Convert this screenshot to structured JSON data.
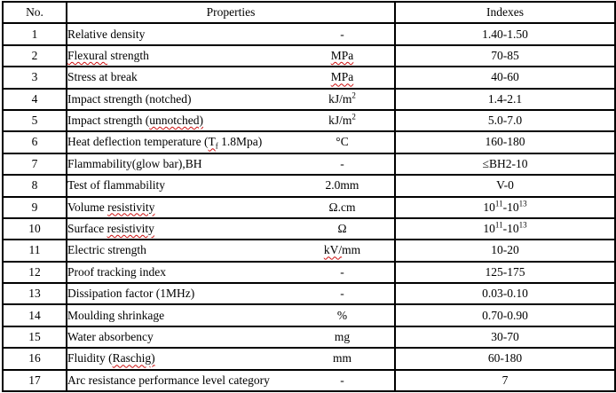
{
  "table": {
    "header": {
      "no": "No.",
      "properties": "Properties",
      "indexes": "Indexes"
    },
    "rows": [
      {
        "no": "1",
        "name": [
          {
            "t": "Relative density"
          }
        ],
        "unit": [
          {
            "t": "-"
          }
        ],
        "index": [
          {
            "t": "1.40-1.50"
          }
        ]
      },
      {
        "no": "2",
        "name": [
          {
            "t": "Flexural",
            "squiggle": true
          },
          {
            "t": " strength"
          }
        ],
        "unit": [
          {
            "t": "MPa",
            "squiggle": true
          }
        ],
        "index": [
          {
            "t": "70-85"
          }
        ]
      },
      {
        "no": "3",
        "name": [
          {
            "t": "Stress at break"
          }
        ],
        "unit": [
          {
            "t": "MPa",
            "squiggle": true
          }
        ],
        "index": [
          {
            "t": "40-60"
          }
        ]
      },
      {
        "no": "4",
        "name": [
          {
            "t": "Impact strength (notched)"
          }
        ],
        "unit": [
          {
            "t": "kJ/m"
          },
          {
            "t": "2",
            "sup": true
          }
        ],
        "index": [
          {
            "t": "1.4-2.1"
          }
        ]
      },
      {
        "no": "5",
        "name": [
          {
            "t": "Impact strength ("
          },
          {
            "t": "unnotched)",
            "squiggle": true
          }
        ],
        "unit": [
          {
            "t": "kJ/m"
          },
          {
            "t": "2",
            "sup": true
          }
        ],
        "index": [
          {
            "t": "5.0-7.0"
          }
        ]
      },
      {
        "no": "6",
        "name": [
          {
            "t": "Heat deflection temperature ("
          },
          {
            "t": "T",
            "squiggle": true
          },
          {
            "t": "f",
            "sub": true,
            "squiggle": true
          },
          {
            "t": " 1.8Mpa)"
          }
        ],
        "unit": [
          {
            "t": "°C"
          }
        ],
        "index": [
          {
            "t": "160-180"
          }
        ]
      },
      {
        "no": "7",
        "name": [
          {
            "t": "Flammability(glow bar),BH"
          }
        ],
        "unit": [
          {
            "t": "-"
          }
        ],
        "index": [
          {
            "t": "≤BH2-10"
          }
        ]
      },
      {
        "no": "8",
        "name": [
          {
            "t": "Test of flammability"
          }
        ],
        "unit": [
          {
            "t": "2.0mm"
          }
        ],
        "index": [
          {
            "t": "V-0"
          }
        ]
      },
      {
        "no": "9",
        "name": [
          {
            "t": "Volume "
          },
          {
            "t": "resistivity",
            "squiggle": true
          }
        ],
        "unit": [
          {
            "t": "Ω.cm"
          }
        ],
        "index": [
          {
            "t": "10"
          },
          {
            "t": "11",
            "sup": true
          },
          {
            "t": "-10"
          },
          {
            "t": "13",
            "sup": true
          }
        ]
      },
      {
        "no": "10",
        "name": [
          {
            "t": "Surface "
          },
          {
            "t": "resistivity",
            "squiggle": true
          }
        ],
        "unit": [
          {
            "t": "Ω"
          }
        ],
        "index": [
          {
            "t": "10"
          },
          {
            "t": "11",
            "sup": true
          },
          {
            "t": "-10"
          },
          {
            "t": "13",
            "sup": true
          }
        ]
      },
      {
        "no": "11",
        "name": [
          {
            "t": "Electric strength"
          }
        ],
        "unit": [
          {
            "t": "kV/",
            "squiggle": true
          },
          {
            "t": "mm"
          }
        ],
        "index": [
          {
            "t": "10-20"
          }
        ]
      },
      {
        "no": "12",
        "name": [
          {
            "t": "Proof tracking index"
          }
        ],
        "unit": [
          {
            "t": "-"
          }
        ],
        "index": [
          {
            "t": "125-175"
          }
        ]
      },
      {
        "no": "13",
        "name": [
          {
            "t": "Dissipation factor (1MHz)"
          }
        ],
        "unit": [
          {
            "t": "-"
          }
        ],
        "index": [
          {
            "t": "0.03-0.10"
          }
        ]
      },
      {
        "no": "14",
        "name": [
          {
            "t": "Moulding shrinkage"
          }
        ],
        "unit": [
          {
            "t": "%"
          }
        ],
        "index": [
          {
            "t": "0.70-0.90"
          }
        ]
      },
      {
        "no": "15",
        "name": [
          {
            "t": "Water absorbency"
          }
        ],
        "unit": [
          {
            "t": "mg"
          }
        ],
        "index": [
          {
            "t": "30-70"
          }
        ]
      },
      {
        "no": "16",
        "name": [
          {
            "t": "Fluidity ("
          },
          {
            "t": "Raschig)",
            "squiggle": true
          }
        ],
        "unit": [
          {
            "t": "mm"
          }
        ],
        "index": [
          {
            "t": "60-180"
          }
        ]
      },
      {
        "no": "17",
        "name": [
          {
            "t": "Arc resistance performance level category"
          }
        ],
        "unit": [
          {
            "t": "-"
          }
        ],
        "index": [
          {
            "t": "7"
          }
        ]
      }
    ]
  },
  "colors": {
    "border": "#000000",
    "text": "#000000",
    "background": "#ffffff",
    "spellcheck_squiggle": "#cc1111"
  }
}
